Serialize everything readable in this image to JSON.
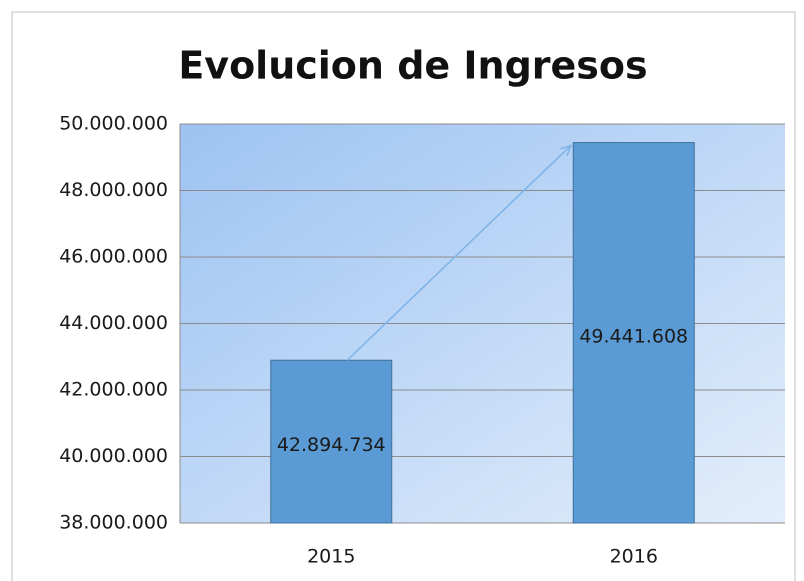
{
  "chart_data": {
    "type": "bar",
    "title": "Evolucion de Ingresos",
    "categories": [
      "2015",
      "2016"
    ],
    "values": [
      42894734,
      49441608
    ],
    "value_labels": [
      "42.894.734",
      "49.441.608"
    ],
    "color": "#5b9bd5",
    "ylim": [
      38000000,
      50000000
    ],
    "yticks": [
      {
        "value": 38000000,
        "label": "38.000.000"
      },
      {
        "value": 40000000,
        "label": "40.000.000"
      },
      {
        "value": 42000000,
        "label": "42.000.000"
      },
      {
        "value": 44000000,
        "label": "44.000.000"
      },
      {
        "value": 46000000,
        "label": "46.000.000"
      },
      {
        "value": 48000000,
        "label": "48.000.000"
      },
      {
        "value": 50000000,
        "label": "50.000.000"
      }
    ],
    "grid": true
  }
}
